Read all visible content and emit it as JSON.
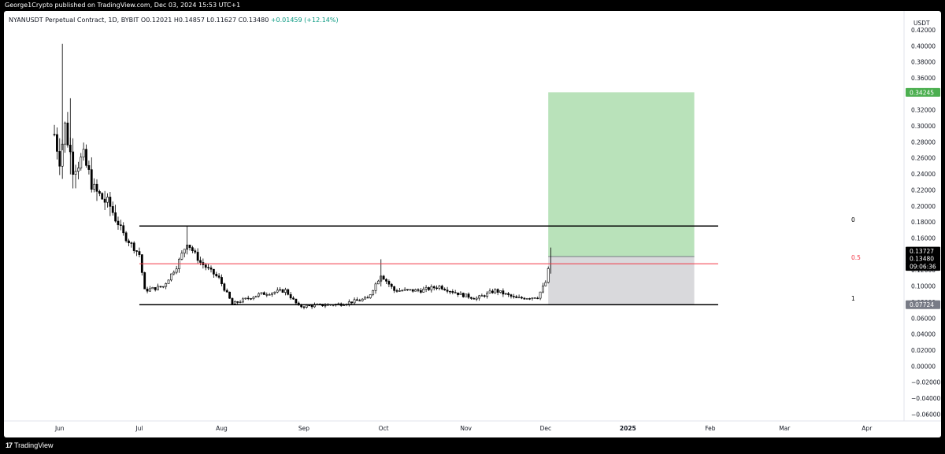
{
  "header": {
    "publisher": "George1Crypto published on TradingView.com, Dec 03, 2024 15:53 UTC+1"
  },
  "footer": {
    "brand": "TradingView",
    "brand_icon": "tradingview-logo-icon"
  },
  "chart_data": {
    "type": "candlestick",
    "symbol": "NYANUSDT Perpetual Contract, 1D, BYBIT",
    "ohlc": {
      "o": "O0.12021",
      "h": "H0.14857",
      "l": "L0.11627",
      "c": "C0.13480",
      "change": "+0.01459 (+12.14%)"
    },
    "currency": "USDT",
    "y_axis": {
      "range": [
        -0.068,
        0.444
      ],
      "ticks": [
        "0.42000",
        "0.40000",
        "0.38000",
        "0.36000",
        "0.34000",
        "0.32000",
        "0.30000",
        "0.28000",
        "0.26000",
        "0.24000",
        "0.22000",
        "0.20000",
        "0.18000",
        "0.16000",
        "0.14000",
        "0.12000",
        "0.10000",
        "0.08000",
        "0.06000",
        "0.04000",
        "0.02000",
        "0.00000",
        "−0.02000",
        "−0.04000",
        "−0.06000"
      ],
      "tick_values": [
        0.42,
        0.4,
        0.38,
        0.36,
        0.34,
        0.32,
        0.3,
        0.28,
        0.26,
        0.24,
        0.22,
        0.2,
        0.18,
        0.16,
        0.14,
        0.12,
        0.1,
        0.08,
        0.06,
        0.04,
        0.02,
        0.0,
        -0.02,
        -0.04,
        -0.06
      ]
    },
    "x_axis": {
      "range": [
        "2024-05-11",
        "2025-04-15"
      ],
      "ticks": [
        {
          "label": "Jun",
          "date": "2024-06-01"
        },
        {
          "label": "Jul",
          "date": "2024-07-01"
        },
        {
          "label": "Aug",
          "date": "2024-08-01"
        },
        {
          "label": "Sep",
          "date": "2024-09-01"
        },
        {
          "label": "Oct",
          "date": "2024-10-01"
        },
        {
          "label": "Nov",
          "date": "2024-11-01"
        },
        {
          "label": "Dec",
          "date": "2024-12-01"
        },
        {
          "label": "2025",
          "date": "2025-01-01",
          "bold": true
        },
        {
          "label": "Feb",
          "date": "2025-02-01"
        },
        {
          "label": "Mar",
          "date": "2025-03-01"
        },
        {
          "label": "Apr",
          "date": "2025-04-01"
        }
      ]
    },
    "price_labels": [
      {
        "text": "0.34245",
        "value": 0.34245,
        "color": "#4caf50"
      },
      {
        "text": "0.13727",
        "value": 0.13727,
        "color": "#000000"
      },
      {
        "text": "0.13480",
        "value": 0.1348,
        "color": "#000000"
      },
      {
        "text": "09:06:36",
        "value": 0.1348,
        "color": "#000000",
        "sub": true
      },
      {
        "text": "0.07724",
        "value": 0.07724,
        "color": "#787b86"
      }
    ],
    "fib_levels": [
      {
        "label": "0",
        "value": 0.1755,
        "color": "#000000"
      },
      {
        "label": "0.5",
        "value": 0.1283,
        "color": "#f23645"
      },
      {
        "label": "1",
        "value": 0.0772,
        "color": "#000000"
      }
    ],
    "fib_start": "2024-07-01",
    "fib_end": "2025-02-04",
    "position": {
      "start": "2024-12-02",
      "end": "2025-01-26",
      "entry": 0.13727,
      "target": 0.34245,
      "stop": 0.07724,
      "profit_color": "#b9e2ba",
      "loss_color": "#d9d9dc"
    },
    "candles_anchors": [
      [
        "2024-05-30",
        0.29
      ],
      [
        "2024-06-01",
        0.26
      ],
      [
        "2024-06-03",
        0.3
      ],
      [
        "2024-06-06",
        0.25
      ],
      [
        "2024-06-10",
        0.26
      ],
      [
        "2024-06-14",
        0.22
      ],
      [
        "2024-06-20",
        0.2
      ],
      [
        "2024-06-25",
        0.165
      ],
      [
        "2024-07-01",
        0.14
      ],
      [
        "2024-07-03",
        0.095
      ],
      [
        "2024-07-10",
        0.1
      ],
      [
        "2024-07-15",
        0.125
      ],
      [
        "2024-07-19",
        0.155
      ],
      [
        "2024-07-24",
        0.13
      ],
      [
        "2024-07-31",
        0.11
      ],
      [
        "2024-08-05",
        0.078
      ],
      [
        "2024-08-15",
        0.09
      ],
      [
        "2024-08-25",
        0.095
      ],
      [
        "2024-08-30",
        0.075
      ],
      [
        "2024-09-15",
        0.078
      ],
      [
        "2024-09-25",
        0.085
      ],
      [
        "2024-09-30",
        0.115
      ],
      [
        "2024-10-05",
        0.095
      ],
      [
        "2024-10-15",
        0.095
      ],
      [
        "2024-10-22",
        0.1
      ],
      [
        "2024-10-30",
        0.09
      ],
      [
        "2024-11-05",
        0.085
      ],
      [
        "2024-11-12",
        0.095
      ],
      [
        "2024-11-20",
        0.085
      ],
      [
        "2024-11-28",
        0.087
      ],
      [
        "2024-12-01",
        0.105
      ],
      [
        "2024-12-03",
        0.1348
      ]
    ]
  }
}
